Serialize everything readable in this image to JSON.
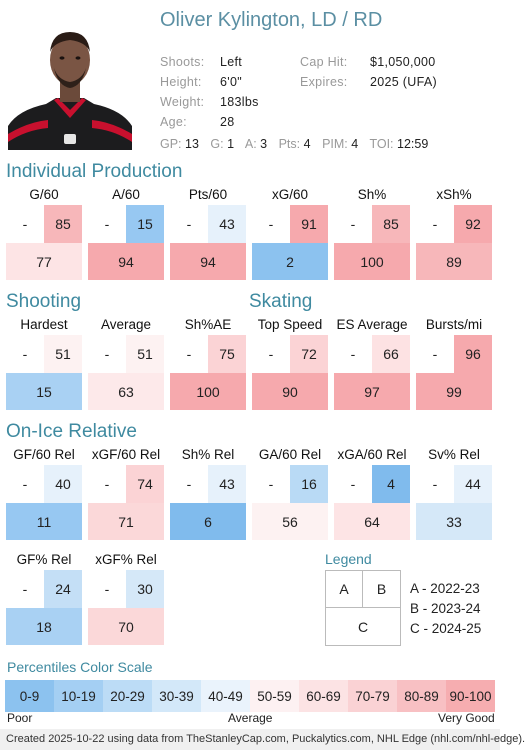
{
  "player": {
    "name": "Oliver Kylington, LD / RD",
    "shoots_label": "Shoots:",
    "shoots": "Left",
    "height_label": "Height:",
    "height": "6'0\"",
    "weight_label": "Weight:",
    "weight": "183lbs",
    "age_label": "Age:",
    "age": "28",
    "cap_label": "Cap Hit:",
    "cap": "$1,050,000",
    "expires_label": "Expires:",
    "expires": "2025 (UFA)"
  },
  "season_stats": {
    "gp_label": "GP:",
    "gp": "13",
    "g_label": "G:",
    "g": "1",
    "a_label": "A:",
    "a": "3",
    "pts_label": "Pts:",
    "pts": "4",
    "pim_label": "PIM:",
    "pim": "4",
    "toi_label": "TOI:",
    "toi": "12:59"
  },
  "sections": {
    "individual": "Individual Production",
    "shooting": "Shooting",
    "skating": "Skating",
    "onice": "On-Ice Relative"
  },
  "tiles": [
    {
      "label": "G/60",
      "a": "-",
      "b": "85",
      "c": "77",
      "bcol": "#f7b7ba",
      "ccol": "#fde4e5"
    },
    {
      "label": "A/60",
      "a": "-",
      "b": "15",
      "c": "94",
      "bcol": "#97c8f2",
      "ccol": "#f6a9ad"
    },
    {
      "label": "Pts/60",
      "a": "-",
      "b": "43",
      "c": "94",
      "bcol": "#e6f1fb",
      "ccol": "#f6a9ad"
    },
    {
      "label": "xG/60",
      "a": "-",
      "b": "91",
      "c": "2",
      "bcol": "#f6a9ad",
      "ccol": "#8cc2ef"
    },
    {
      "label": "Sh%",
      "a": "-",
      "b": "85",
      "c": "100",
      "bcol": "#f7b7ba",
      "ccol": "#f6a9ad"
    },
    {
      "label": "xSh%",
      "a": "-",
      "b": "92",
      "c": "89",
      "bcol": "#f6a9ad",
      "ccol": "#f7b7ba"
    },
    {
      "label": "Hardest",
      "a": "-",
      "b": "51",
      "c": "15",
      "bcol": "#fdf2f2",
      "ccol": "#a9d1f3"
    },
    {
      "label": "Average",
      "a": "-",
      "b": "51",
      "c": "63",
      "bcol": "#fdf2f2",
      "ccol": "#fde9ea"
    },
    {
      "label": "Sh%AE",
      "a": "-",
      "b": "75",
      "c": "100",
      "bcol": "#fbd3d5",
      "ccol": "#f6a9ad"
    },
    {
      "label": "Top Speed",
      "a": "-",
      "b": "72",
      "c": "90",
      "bcol": "#fbd3d5",
      "ccol": "#f6a9ad"
    },
    {
      "label": "ES Average",
      "a": "-",
      "b": "66",
      "c": "97",
      "bcol": "#fde2e3",
      "ccol": "#f6a9ad"
    },
    {
      "label": "Bursts/mi",
      "a": "-",
      "b": "96",
      "c": "99",
      "bcol": "#f6a9ad",
      "ccol": "#f6a9ad"
    },
    {
      "label": "GF/60 Rel",
      "a": "-",
      "b": "40",
      "c": "11",
      "bcol": "#e6f1fb",
      "ccol": "#97c8f2"
    },
    {
      "label": "xGF/60 Rel",
      "a": "-",
      "b": "74",
      "c": "71",
      "bcol": "#fbd3d5",
      "ccol": "#fbd8d9"
    },
    {
      "label": "Sh% Rel",
      "a": "-",
      "b": "43",
      "c": "6",
      "bcol": "#e6f1fb",
      "ccol": "#80bbed"
    },
    {
      "label": "GA/60 Rel",
      "a": "-",
      "b": "16",
      "c": "56",
      "bcol": "#b9daf5",
      "ccol": "#fdf2f2"
    },
    {
      "label": "xGA/60 Rel",
      "a": "-",
      "b": "4",
      "c": "64",
      "bcol": "#80bbed",
      "ccol": "#fde4e5"
    },
    {
      "label": "Sv% Rel",
      "a": "-",
      "b": "44",
      "c": "33",
      "bcol": "#e6f1fb",
      "ccol": "#d5e8f8"
    },
    {
      "label": "GF% Rel",
      "a": "-",
      "b": "24",
      "c": "18",
      "bcol": "#c4dff6",
      "ccol": "#a9d1f3"
    },
    {
      "label": "xGF% Rel",
      "a": "-",
      "b": "30",
      "c": "70",
      "bcol": "#d5e8f8",
      "ccol": "#fbd8d9"
    }
  ],
  "legend": {
    "title": "Legend",
    "a": "A",
    "b": "B",
    "c": "C",
    "a_text": "A - 2022-23",
    "b_text": "B - 2023-24",
    "c_text": "C - 2024-25"
  },
  "scale": {
    "title": "Percentiles Color Scale",
    "items": [
      {
        "label": "0-9",
        "color": "#8cc2ef"
      },
      {
        "label": "10-19",
        "color": "#a4cff3"
      },
      {
        "label": "20-29",
        "color": "#bcdcf6"
      },
      {
        "label": "30-39",
        "color": "#d3e8f9"
      },
      {
        "label": "40-49",
        "color": "#eaf3fc"
      },
      {
        "label": "50-59",
        "color": "#fdf1f2"
      },
      {
        "label": "60-69",
        "color": "#fce3e4"
      },
      {
        "label": "70-79",
        "color": "#fad2d4"
      },
      {
        "label": "80-89",
        "color": "#f8c0c3"
      },
      {
        "label": "90-100",
        "color": "#f6adb0"
      }
    ],
    "poor": "Poor",
    "average": "Average",
    "good": "Very Good"
  },
  "footer": "Created 2025-10-22 using data from TheStanleyCap.com, Puckalytics.com, NHL Edge (nhl.com/nhl-edge)."
}
